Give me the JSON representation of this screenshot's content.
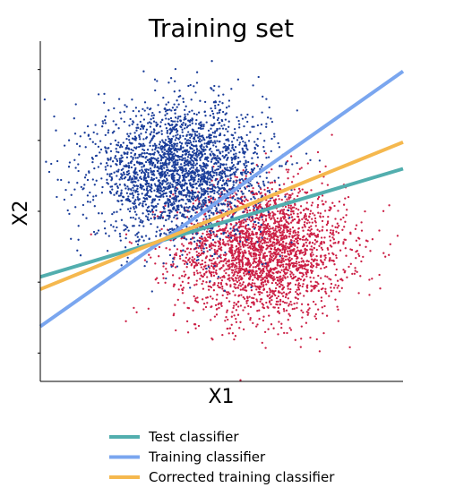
{
  "chart_data": {
    "type": "scatter",
    "title": "Training set",
    "xlabel": "X1",
    "ylabel": "X2",
    "xlim": [
      -4.5,
      4.5
    ],
    "ylim": [
      -4.8,
      4.8
    ],
    "grid": false,
    "legend_placement": "bottom-center",
    "point_clouds": [
      {
        "color": "#1a3d99",
        "center": [
          -1.0,
          1.1
        ],
        "spread": [
          1.05,
          0.95
        ]
      },
      {
        "color": "#cc1f45",
        "center": [
          1.0,
          -1.1
        ],
        "spread": [
          1.05,
          0.95
        ]
      }
    ],
    "lines": [
      {
        "name": "Test classifier",
        "color": "#52aeae",
        "x": [
          -4.5,
          4.5
        ],
        "y": [
          -1.85,
          1.2
        ]
      },
      {
        "name": "Training classifier",
        "color": "#7aa6ef",
        "x": [
          -4.5,
          4.5
        ],
        "y": [
          -3.25,
          3.95
        ]
      },
      {
        "name": "Corrected training classifier",
        "color": "#f5b84e",
        "x": [
          -4.5,
          4.5
        ],
        "y": [
          -2.2,
          1.95
        ]
      }
    ]
  }
}
